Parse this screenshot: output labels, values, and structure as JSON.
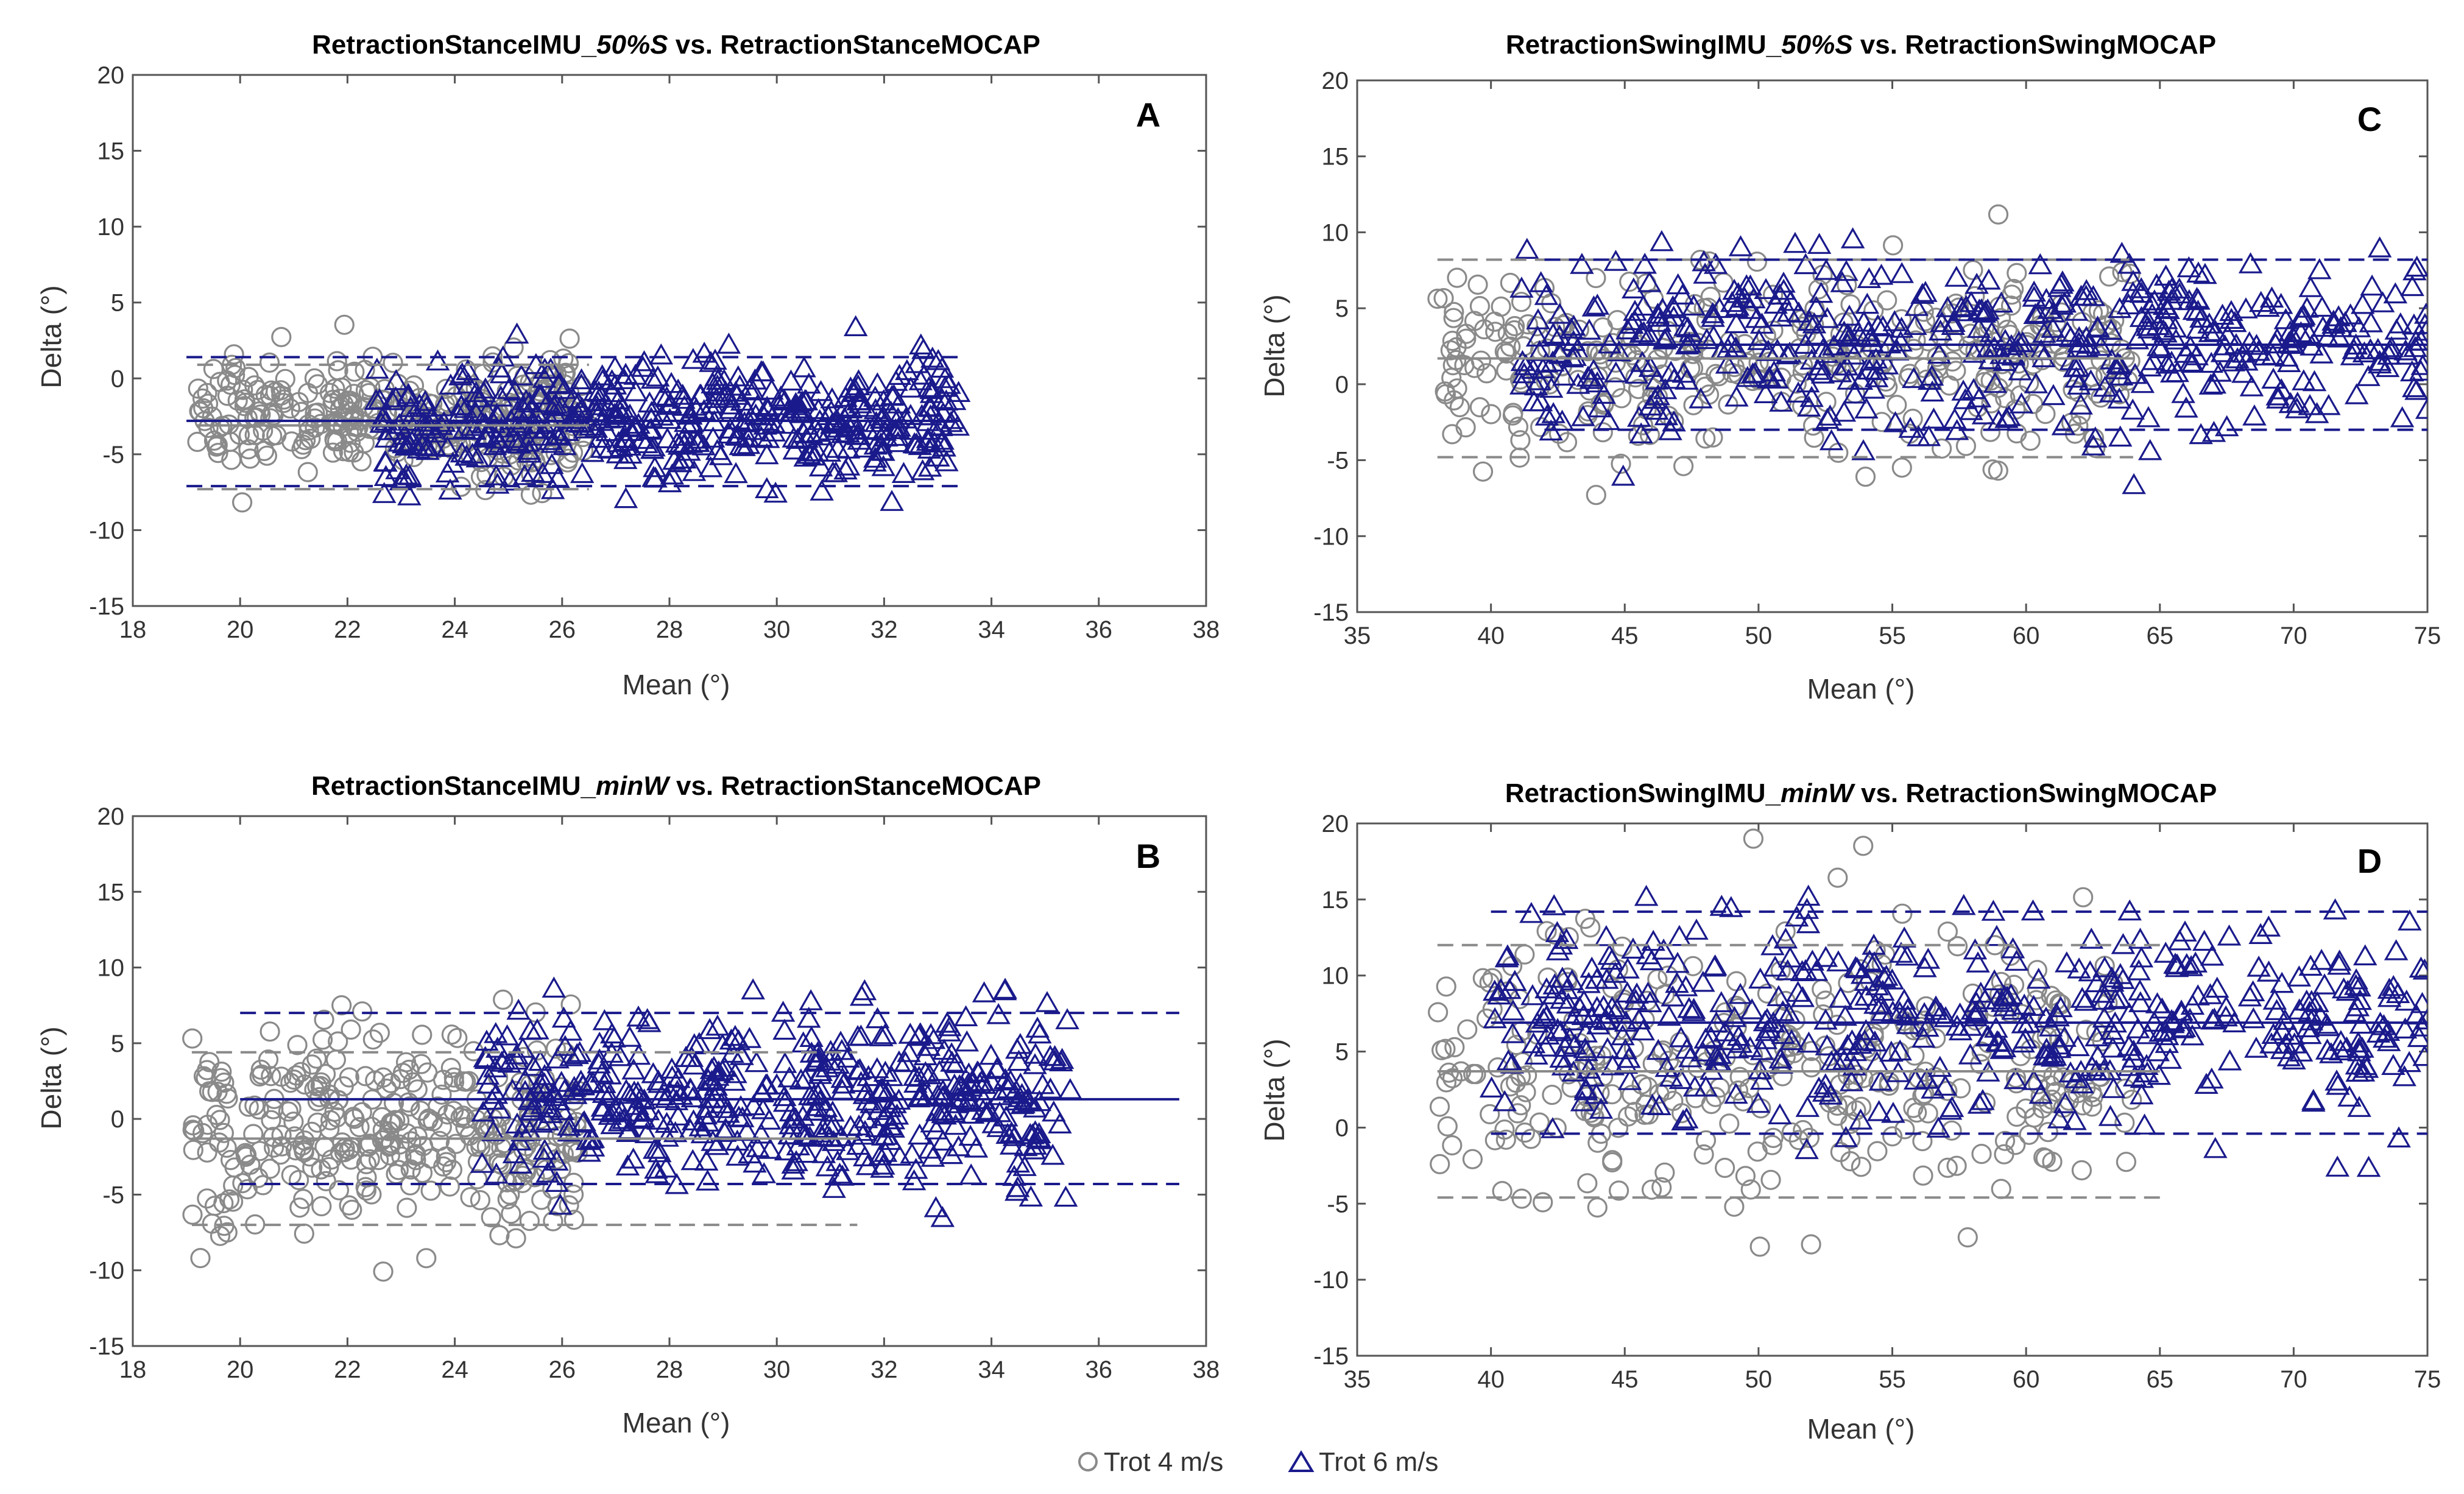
{
  "colors": {
    "trot4": "#8a8a8a",
    "trot6": "#1a1a8c",
    "axis": "#555555"
  },
  "legend": {
    "trot4": "Trot 4 m/s",
    "trot6": "Trot 6 m/s"
  },
  "chart_data": [
    {
      "type": "scatter",
      "panel": "A",
      "title": {
        "prefix": "RetractionStanceIMU_",
        "italic": "50%S",
        "suffix": " vs. RetractionStanceMOCAP"
      },
      "xlabel": "Mean (°)",
      "ylabel": "Delta (°)",
      "xlim": [
        18,
        38
      ],
      "ylim": [
        -15,
        20
      ],
      "xticks": [
        18,
        20,
        22,
        24,
        26,
        28,
        30,
        32,
        34,
        36,
        38
      ],
      "yticks": [
        -15,
        -10,
        -5,
        0,
        5,
        10,
        15,
        20
      ],
      "series": [
        {
          "name": "Trot 4 m/s",
          "marker": "circle",
          "cluster": {
            "x_range": [
              19.2,
              26.5
            ],
            "y_center": -2.5,
            "y_sd": 2.0,
            "n": 330
          },
          "bias": -3.1,
          "loa": [
            -7.3,
            0.9
          ],
          "line_x": [
            19.2,
            26.5
          ]
        },
        {
          "name": "Trot 6 m/s",
          "marker": "triangle",
          "cluster": {
            "x_range": [
              22.5,
              33.4
            ],
            "y_center": -3.0,
            "y_sd": 2.0,
            "n": 500
          },
          "bias": -2.8,
          "loa": [
            -7.1,
            1.4
          ],
          "line_x": [
            19.0,
            33.4
          ]
        }
      ]
    },
    {
      "type": "scatter",
      "panel": "B",
      "title": {
        "prefix": "RetractionStanceIMU_",
        "italic": "minW",
        "suffix": " vs. RetractionStanceMOCAP"
      },
      "xlabel": "Mean (°)",
      "ylabel": "Delta (°)",
      "xlim": [
        18,
        38
      ],
      "ylim": [
        -15,
        20
      ],
      "xticks": [
        18,
        20,
        22,
        24,
        26,
        28,
        30,
        32,
        34,
        36,
        38
      ],
      "yticks": [
        -15,
        -10,
        -5,
        0,
        5,
        10,
        15,
        20
      ],
      "series": [
        {
          "name": "Trot 4 m/s",
          "marker": "circle",
          "cluster": {
            "x_range": [
              19.1,
              26.3
            ],
            "y_center": -1.0,
            "y_sd": 3.2,
            "n": 330
          },
          "bias": -1.3,
          "loa": [
            -7.0,
            4.4
          ],
          "line_x": [
            19.1,
            31.5
          ]
        },
        {
          "name": "Trot 6 m/s",
          "marker": "triangle",
          "cluster": {
            "x_range": [
              24.5,
              35.5
            ],
            "y_center": 1.5,
            "y_sd": 2.8,
            "n": 500
          },
          "bias": 1.3,
          "loa": [
            -4.3,
            7.0
          ],
          "line_x": [
            20.0,
            37.5
          ]
        }
      ]
    },
    {
      "type": "scatter",
      "panel": "C",
      "title": {
        "prefix": "RetractionSwingIMU_",
        "italic": "50%S",
        "suffix": " vs. RetractionSwingMOCAP"
      },
      "xlabel": "Mean (°)",
      "ylabel": "Delta (°)",
      "xlim": [
        35,
        75
      ],
      "ylim": [
        -15,
        20
      ],
      "xticks": [
        35,
        40,
        45,
        50,
        55,
        60,
        65,
        70,
        75
      ],
      "yticks": [
        -15,
        -10,
        -5,
        0,
        5,
        10,
        15,
        20
      ],
      "series": [
        {
          "name": "Trot 4 m/s",
          "marker": "circle",
          "cluster": {
            "x_range": [
              38,
              64
            ],
            "y_center": 1.5,
            "y_sd": 3.2,
            "n": 330
          },
          "bias": 1.7,
          "loa": [
            -4.8,
            8.2
          ],
          "line_x": [
            38,
            64
          ]
        },
        {
          "name": "Trot 6 m/s",
          "marker": "triangle",
          "cluster": {
            "x_range": [
              41,
              75
            ],
            "y_center": 2.5,
            "y_sd": 2.8,
            "n": 520
          },
          "bias": 2.6,
          "loa": [
            -3.0,
            8.2
          ],
          "line_x": [
            42,
            75
          ]
        }
      ]
    },
    {
      "type": "scatter",
      "panel": "D",
      "title": {
        "prefix": "RetractionSwingIMU_",
        "italic": "minW",
        "suffix": " vs. RetractionSwingMOCAP"
      },
      "xlabel": "Mean (°)",
      "ylabel": "Delta (°)",
      "xlim": [
        35,
        75
      ],
      "ylim": [
        -15,
        20
      ],
      "xticks": [
        35,
        40,
        45,
        50,
        55,
        60,
        65,
        70,
        75
      ],
      "yticks": [
        -15,
        -10,
        -5,
        0,
        5,
        10,
        15,
        20
      ],
      "series": [
        {
          "name": "Trot 4 m/s",
          "marker": "circle",
          "cluster": {
            "x_range": [
              38,
              64
            ],
            "y_center": 4.0,
            "y_sd": 4.5,
            "n": 330
          },
          "bias": 3.7,
          "loa": [
            -4.6,
            12.0
          ],
          "line_x": [
            38,
            65
          ]
        },
        {
          "name": "Trot 6 m/s",
          "marker": "triangle",
          "cluster": {
            "x_range": [
              40,
              75
            ],
            "y_center": 7.0,
            "y_sd": 3.3,
            "n": 520
          },
          "bias": 6.9,
          "loa": [
            -0.4,
            14.2
          ],
          "line_x": [
            40,
            75
          ]
        }
      ]
    }
  ]
}
